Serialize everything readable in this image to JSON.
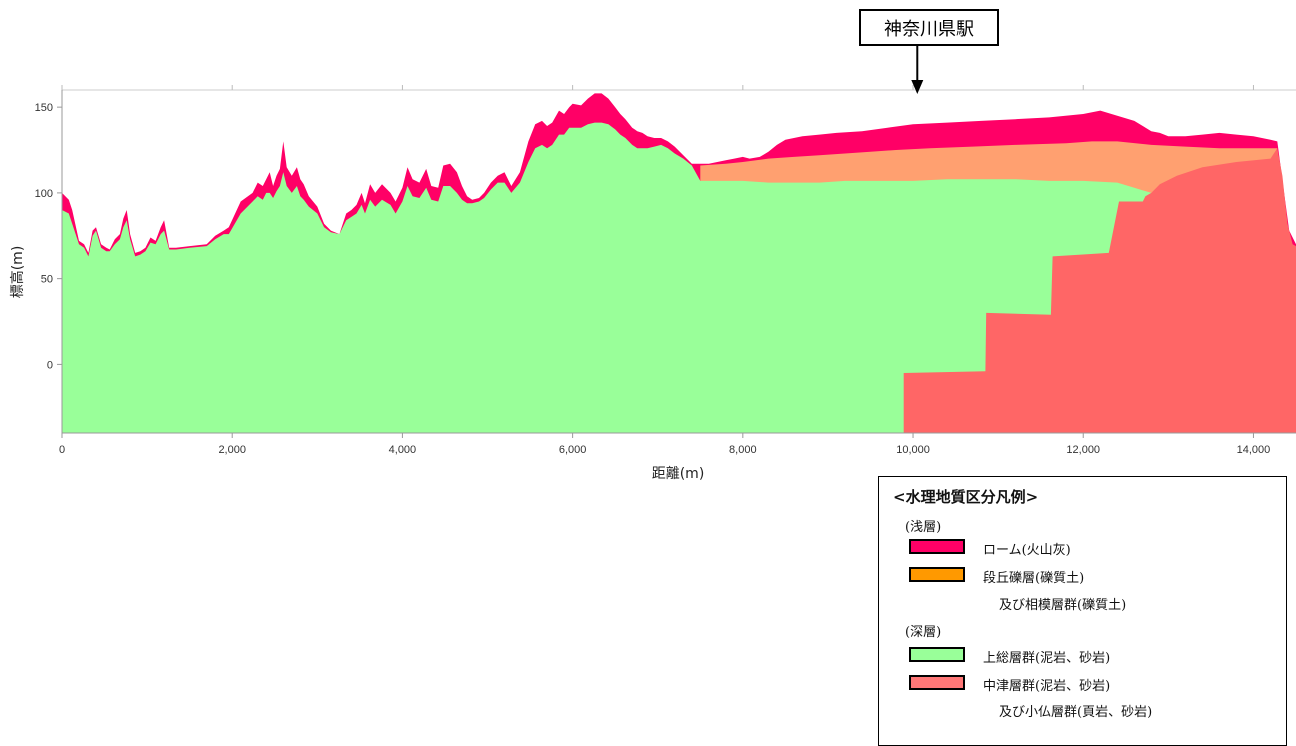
{
  "station_label": "神奈川県駅",
  "chart_data": {
    "type": "area",
    "xlabel": "距離(m)",
    "ylabel": "標高(m)",
    "xlim": [
      0,
      14500
    ],
    "ylim": [
      -40,
      160
    ],
    "xticks": [
      0,
      2000,
      4000,
      6000,
      8000,
      10000,
      12000,
      14000
    ],
    "xtick_labels": [
      "0",
      "2,000",
      "4,000",
      "6,000",
      "8,000",
      "10,000",
      "12,000",
      "14,000"
    ],
    "yticks": [
      0,
      50,
      100,
      150
    ],
    "ytick_labels": [
      "0",
      "50",
      "100",
      "150"
    ],
    "station_x": 10050,
    "layers": [
      {
        "name": "ローム(火山灰)",
        "color": "#ff0066",
        "top": [
          [
            0,
            100
          ],
          [
            80,
            96
          ],
          [
            120,
            90
          ],
          [
            200,
            72
          ],
          [
            260,
            70
          ],
          [
            310,
            65
          ],
          [
            360,
            78
          ],
          [
            400,
            80
          ],
          [
            460,
            70
          ],
          [
            520,
            68
          ],
          [
            560,
            67
          ],
          [
            620,
            73
          ],
          [
            680,
            76
          ],
          [
            720,
            85
          ],
          [
            760,
            90
          ],
          [
            800,
            76
          ],
          [
            860,
            65
          ],
          [
            920,
            66
          ],
          [
            980,
            68
          ],
          [
            1040,
            74
          ],
          [
            1100,
            72
          ],
          [
            1160,
            80
          ],
          [
            1200,
            84
          ],
          [
            1260,
            68
          ],
          [
            1340,
            68
          ],
          [
            1500,
            69
          ],
          [
            1700,
            70
          ],
          [
            1800,
            75
          ],
          [
            1900,
            78
          ],
          [
            1960,
            80
          ],
          [
            2100,
            95
          ],
          [
            2240,
            100
          ],
          [
            2300,
            106
          ],
          [
            2360,
            104
          ],
          [
            2400,
            108
          ],
          [
            2440,
            112
          ],
          [
            2480,
            104
          ],
          [
            2520,
            110
          ],
          [
            2560,
            114
          ],
          [
            2600,
            130
          ],
          [
            2640,
            115
          ],
          [
            2700,
            110
          ],
          [
            2760,
            115
          ],
          [
            2800,
            108
          ],
          [
            2840,
            105
          ],
          [
            2900,
            98
          ],
          [
            3000,
            92
          ],
          [
            3080,
            82
          ],
          [
            3160,
            78
          ],
          [
            3260,
            76
          ],
          [
            3340,
            88
          ],
          [
            3400,
            90
          ],
          [
            3460,
            93
          ],
          [
            3520,
            100
          ],
          [
            3560,
            94
          ],
          [
            3620,
            105
          ],
          [
            3680,
            100
          ],
          [
            3760,
            105
          ],
          [
            3860,
            100
          ],
          [
            3920,
            95
          ],
          [
            4000,
            103
          ],
          [
            4060,
            115
          ],
          [
            4120,
            108
          ],
          [
            4200,
            106
          ],
          [
            4280,
            114
          ],
          [
            4340,
            104
          ],
          [
            4420,
            103
          ],
          [
            4480,
            116
          ],
          [
            4560,
            117
          ],
          [
            4640,
            112
          ],
          [
            4700,
            104
          ],
          [
            4760,
            98
          ],
          [
            4820,
            96
          ],
          [
            4900,
            97
          ],
          [
            4960,
            100
          ],
          [
            5040,
            106
          ],
          [
            5120,
            110
          ],
          [
            5200,
            112
          ],
          [
            5280,
            104
          ],
          [
            5380,
            112
          ],
          [
            5480,
            130
          ],
          [
            5560,
            140
          ],
          [
            5640,
            142
          ],
          [
            5700,
            139
          ],
          [
            5760,
            141
          ],
          [
            5840,
            148
          ],
          [
            5900,
            146
          ],
          [
            5960,
            150
          ],
          [
            6000,
            152
          ],
          [
            6100,
            151
          ],
          [
            6180,
            155
          ],
          [
            6260,
            158
          ],
          [
            6340,
            158
          ],
          [
            6420,
            155
          ],
          [
            6500,
            150
          ],
          [
            6560,
            146
          ],
          [
            6620,
            143
          ],
          [
            6700,
            138
          ],
          [
            6760,
            136
          ],
          [
            6820,
            135
          ],
          [
            6880,
            133
          ],
          [
            6960,
            132
          ],
          [
            7040,
            132
          ],
          [
            7120,
            130
          ],
          [
            7200,
            127
          ],
          [
            7300,
            122
          ],
          [
            7400,
            117
          ],
          [
            7500,
            117
          ],
          [
            7600,
            117
          ],
          [
            7700,
            118
          ],
          [
            7800,
            119
          ],
          [
            7900,
            120
          ],
          [
            8000,
            121
          ],
          [
            8080,
            120
          ],
          [
            8200,
            121
          ],
          [
            8300,
            124
          ],
          [
            8400,
            128
          ],
          [
            8500,
            131
          ],
          [
            8700,
            133
          ],
          [
            8900,
            134
          ],
          [
            9100,
            135
          ],
          [
            9400,
            136
          ],
          [
            9700,
            138
          ],
          [
            10000,
            140
          ],
          [
            10400,
            141
          ],
          [
            10800,
            142
          ],
          [
            11200,
            143
          ],
          [
            11600,
            144
          ],
          [
            12000,
            146
          ],
          [
            12200,
            148
          ],
          [
            12400,
            145
          ],
          [
            12600,
            142
          ],
          [
            12800,
            136
          ],
          [
            12900,
            135
          ],
          [
            13000,
            133
          ],
          [
            13200,
            133
          ],
          [
            13400,
            134
          ],
          [
            13600,
            135
          ],
          [
            13800,
            134
          ],
          [
            14000,
            133
          ],
          [
            14200,
            131
          ],
          [
            14280,
            130
          ],
          [
            14360,
            100
          ],
          [
            14420,
            78
          ],
          [
            14500,
            70
          ]
        ]
      },
      {
        "name": "段丘礫層(礫質土) 及び相模層群(礫質土)",
        "color": "#ffa070",
        "top": [
          [
            7500,
            116
          ],
          [
            7800,
            117
          ],
          [
            8000,
            118
          ],
          [
            8300,
            120
          ],
          [
            8600,
            121
          ],
          [
            8900,
            122
          ],
          [
            9200,
            123
          ],
          [
            9500,
            124
          ],
          [
            9800,
            125
          ],
          [
            10200,
            126
          ],
          [
            10700,
            127
          ],
          [
            11200,
            128
          ],
          [
            11800,
            129
          ],
          [
            12100,
            130
          ],
          [
            12400,
            130
          ],
          [
            12800,
            128
          ],
          [
            13200,
            127
          ],
          [
            13600,
            126
          ],
          [
            14000,
            126
          ],
          [
            14280,
            126
          ]
        ]
      },
      {
        "name": "上総層群(泥岩、砂岩)",
        "color": "#99ff99",
        "top": [
          [
            0,
            90
          ],
          [
            80,
            88
          ],
          [
            120,
            82
          ],
          [
            200,
            70
          ],
          [
            260,
            68
          ],
          [
            310,
            63
          ],
          [
            360,
            75
          ],
          [
            400,
            78
          ],
          [
            460,
            68
          ],
          [
            520,
            66
          ],
          [
            560,
            66
          ],
          [
            620,
            70
          ],
          [
            680,
            73
          ],
          [
            720,
            80
          ],
          [
            760,
            84
          ],
          [
            800,
            73
          ],
          [
            860,
            63
          ],
          [
            920,
            64
          ],
          [
            980,
            66
          ],
          [
            1040,
            71
          ],
          [
            1100,
            70
          ],
          [
            1160,
            76
          ],
          [
            1200,
            78
          ],
          [
            1260,
            67
          ],
          [
            1340,
            67
          ],
          [
            1500,
            68
          ],
          [
            1700,
            69
          ],
          [
            1800,
            73
          ],
          [
            1900,
            76
          ],
          [
            1960,
            76
          ],
          [
            2100,
            88
          ],
          [
            2240,
            95
          ],
          [
            2300,
            98
          ],
          [
            2360,
            96
          ],
          [
            2400,
            100
          ],
          [
            2440,
            100
          ],
          [
            2480,
            97
          ],
          [
            2520,
            101
          ],
          [
            2560,
            104
          ],
          [
            2600,
            112
          ],
          [
            2640,
            104
          ],
          [
            2700,
            100
          ],
          [
            2760,
            104
          ],
          [
            2800,
            98
          ],
          [
            2840,
            96
          ],
          [
            2900,
            92
          ],
          [
            3000,
            88
          ],
          [
            3080,
            80
          ],
          [
            3160,
            77
          ],
          [
            3260,
            76
          ],
          [
            3340,
            84
          ],
          [
            3400,
            86
          ],
          [
            3460,
            88
          ],
          [
            3520,
            93
          ],
          [
            3560,
            88
          ],
          [
            3620,
            96
          ],
          [
            3680,
            92
          ],
          [
            3760,
            96
          ],
          [
            3860,
            93
          ],
          [
            3920,
            88
          ],
          [
            4000,
            95
          ],
          [
            4060,
            104
          ],
          [
            4120,
            98
          ],
          [
            4200,
            97
          ],
          [
            4280,
            103
          ],
          [
            4340,
            96
          ],
          [
            4420,
            95
          ],
          [
            4480,
            104
          ],
          [
            4560,
            104
          ],
          [
            4640,
            100
          ],
          [
            4700,
            96
          ],
          [
            4760,
            94
          ],
          [
            4820,
            94
          ],
          [
            4900,
            95
          ],
          [
            4960,
            97
          ],
          [
            5040,
            102
          ],
          [
            5120,
            106
          ],
          [
            5200,
            106
          ],
          [
            5280,
            100
          ],
          [
            5380,
            106
          ],
          [
            5480,
            118
          ],
          [
            5560,
            126
          ],
          [
            5640,
            128
          ],
          [
            5700,
            126
          ],
          [
            5760,
            128
          ],
          [
            5840,
            134
          ],
          [
            5900,
            134
          ],
          [
            5960,
            138
          ],
          [
            6000,
            138
          ],
          [
            6100,
            138
          ],
          [
            6180,
            140
          ],
          [
            6260,
            141
          ],
          [
            6340,
            141
          ],
          [
            6420,
            140
          ],
          [
            6500,
            137
          ],
          [
            6560,
            134
          ],
          [
            6620,
            132
          ],
          [
            6700,
            128
          ],
          [
            6760,
            126
          ],
          [
            6820,
            126
          ],
          [
            6880,
            126
          ],
          [
            6960,
            127
          ],
          [
            7040,
            128
          ],
          [
            7120,
            126
          ],
          [
            7200,
            123
          ],
          [
            7300,
            120
          ],
          [
            7400,
            116
          ],
          [
            7500,
            107
          ],
          [
            8000,
            107
          ],
          [
            8300,
            106
          ],
          [
            8600,
            106
          ],
          [
            8900,
            106
          ],
          [
            9200,
            107
          ],
          [
            9600,
            107
          ],
          [
            10000,
            107
          ],
          [
            10400,
            108
          ],
          [
            10800,
            108
          ],
          [
            11200,
            108
          ],
          [
            11600,
            107
          ],
          [
            12000,
            107
          ],
          [
            12400,
            106
          ],
          [
            12600,
            103
          ],
          [
            12800,
            100
          ],
          [
            13000,
            100
          ],
          [
            14280,
            100
          ]
        ]
      },
      {
        "name": "中津層群(泥岩、砂岩) 及び小仏層群(頁岩、砂岩)",
        "color": "#ff6666",
        "top": [
          [
            9890,
            -5
          ],
          [
            10850,
            -4
          ],
          [
            10860,
            30
          ],
          [
            11620,
            29
          ],
          [
            11640,
            63
          ],
          [
            12300,
            65
          ],
          [
            12420,
            95
          ],
          [
            12700,
            95
          ],
          [
            12730,
            98
          ],
          [
            12800,
            100
          ],
          [
            12900,
            105
          ],
          [
            13100,
            110
          ],
          [
            13400,
            115
          ],
          [
            13800,
            118
          ],
          [
            14200,
            120
          ],
          [
            14280,
            126
          ],
          [
            14340,
            110
          ],
          [
            14400,
            82
          ],
          [
            14460,
            70
          ],
          [
            14500,
            69
          ]
        ]
      }
    ]
  },
  "legend": {
    "title": "<水理地質区分凡例>",
    "shallow_label": "(浅層)",
    "deep_label": "(深層)",
    "items": [
      {
        "label": "ローム(火山灰)",
        "label2": "",
        "color": "#ff0066"
      },
      {
        "label": "段丘礫層(礫質土)",
        "label2": "及び相模層群(礫質土)",
        "color": "#ff9900"
      },
      {
        "label": "上総層群(泥岩、砂岩)",
        "label2": "",
        "color": "#99ff99"
      },
      {
        "label": "中津層群(泥岩、砂岩)",
        "label2": "及び小仏層群(頁岩、砂岩)",
        "color": "#ff7777"
      }
    ]
  }
}
